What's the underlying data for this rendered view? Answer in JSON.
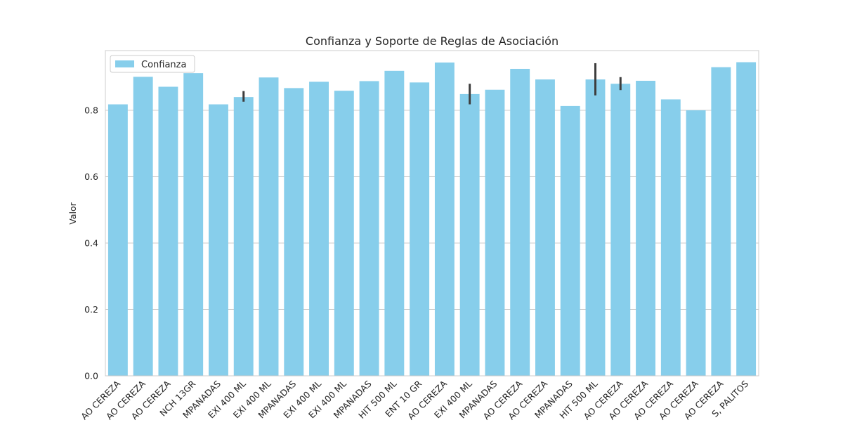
{
  "chart_data": {
    "type": "bar",
    "title": "Confianza y Soporte de Reglas de Asociación",
    "xlabel": "",
    "ylabel": "Valor",
    "ylim": [
      0,
      0.98
    ],
    "yticks": [
      "0.0",
      "0.2",
      "0.4",
      "0.6",
      "0.8"
    ],
    "grid": "horizontal",
    "legend": {
      "position": "top-left",
      "entries": [
        "Confianza"
      ]
    },
    "categories": [
      "AO CEREZA",
      "AO CEREZA",
      "AO CEREZA",
      "NCH 13GR",
      "MPANADAS",
      "EXI 400 ML",
      "EXI 400 ML",
      "MPANADAS",
      "EXI 400 ML",
      "EXI 400 ML",
      "MPANADAS",
      "HIT 500 ML",
      "ENT 10 GR",
      "AO CEREZA",
      "EXI 400 ML",
      "MPANADAS",
      "AO CEREZA",
      "AO CEREZA",
      "MPANADAS",
      "HIT 500 ML",
      "AO CEREZA",
      "AO CEREZA",
      "AO CEREZA",
      "AO CEREZA",
      "AO CEREZA",
      "S, PALITOS"
    ],
    "series": [
      {
        "name": "Confianza",
        "color": "#87ceeb",
        "values": [
          0.818,
          0.901,
          0.871,
          0.912,
          0.818,
          0.84,
          0.899,
          0.867,
          0.886,
          0.859,
          0.888,
          0.919,
          0.884,
          0.944,
          0.849,
          0.862,
          0.925,
          0.893,
          0.813,
          0.893,
          0.88,
          0.889,
          0.833,
          0.8,
          0.93,
          0.945
        ],
        "error_bars": [
          null,
          null,
          null,
          null,
          null,
          [
            0.826,
            0.858
          ],
          null,
          null,
          null,
          null,
          null,
          null,
          null,
          null,
          [
            0.818,
            0.88
          ],
          null,
          null,
          null,
          null,
          [
            0.845,
            0.942
          ],
          [
            0.861,
            0.9
          ],
          null,
          null,
          null,
          null,
          null
        ]
      }
    ]
  }
}
